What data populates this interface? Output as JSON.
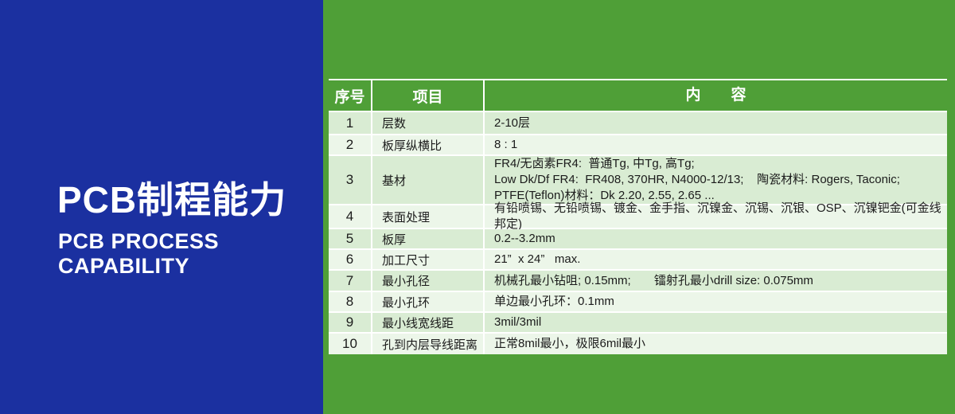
{
  "left_panel": {
    "title": "PCB制程能力",
    "subtitle": "PCB PROCESS\nCAPABILITY",
    "background": "#1b30a0"
  },
  "colors": {
    "page_green": "#4f9f37",
    "panel_blue": "#1b30a0",
    "row_stripe_dark": "#d9ecd3",
    "row_stripe_light": "#ecf6e9",
    "header_text": "#ffffff",
    "body_text": "#1b1b1b"
  },
  "table": {
    "headers": [
      "序号",
      "项目",
      "内　　容"
    ],
    "rows": [
      {
        "no": "1",
        "item": "层数",
        "content": "2-10层"
      },
      {
        "no": "2",
        "item": "板厚纵横比",
        "content": "8 : 1"
      },
      {
        "no": "3",
        "item": "基材",
        "content": "FR4/无卤素FR4:  普通Tg, 中Tg, 高Tg;\nLow Dk/Df FR4:  FR408, 370HR, N4000-12/13;    陶瓷材料: Rogers, Taconic;\nPTFE(Teflon)材料：Dk 2.20, 2.55, 2.65 ..."
      },
      {
        "no": "4",
        "item": "表面处理",
        "content": "有铅喷锡、无铅喷锡、镀金、金手指、沉镍金、沉锡、沉银、OSP、沉镍钯金(可金线邦定)"
      },
      {
        "no": "5",
        "item": "板厚",
        "content": "0.2--3.2mm"
      },
      {
        "no": "6",
        "item": "加工尺寸",
        "content": "21”  x 24”   max."
      },
      {
        "no": "7",
        "item": "最小孔径",
        "content": "机械孔最小钻咀; 0.15mm;       镭射孔最小drill size: 0.075mm"
      },
      {
        "no": "8",
        "item": "最小孔环",
        "content": "单边最小孔环：0.1mm"
      },
      {
        "no": "9",
        "item": "最小线宽线距",
        "content": "3mil/3mil"
      },
      {
        "no": "10",
        "item": "孔到内层导线距离",
        "content": "正常8mil最小，极限6mil最小"
      }
    ]
  }
}
